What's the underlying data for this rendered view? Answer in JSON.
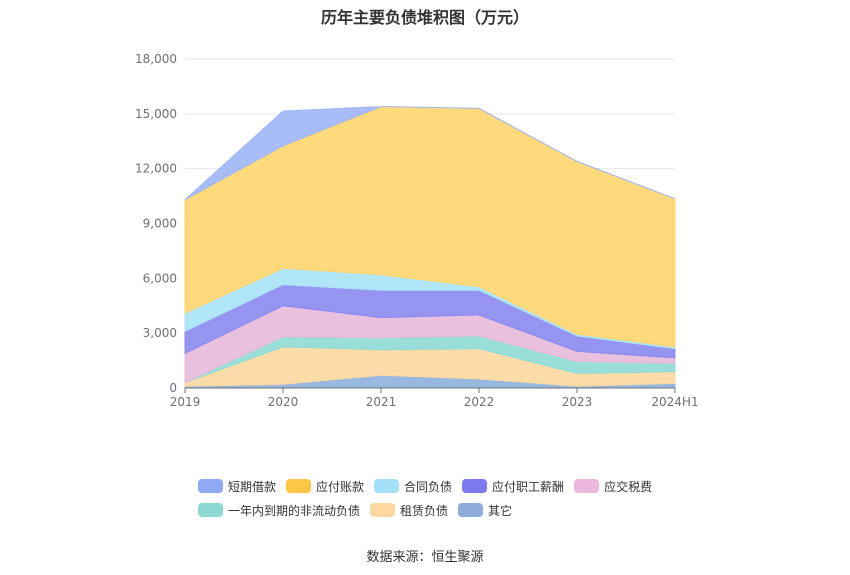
{
  "chart_data": {
    "type": "area",
    "stacked": true,
    "title": "历年主要负债堆积图（万元）",
    "categories": [
      "2019",
      "2020",
      "2021",
      "2022",
      "2023",
      "2024H1"
    ],
    "ylim": [
      0,
      18000
    ],
    "yticks": [
      0,
      3000,
      6000,
      9000,
      12000,
      15000,
      18000
    ],
    "ytick_labels": [
      "0",
      "3,000",
      "6,000",
      "9,000",
      "12,000",
      "15,000",
      "18,000"
    ],
    "grid": true,
    "legend_position": "bottom",
    "series": [
      {
        "name": "其它",
        "color": "#8eb0dc",
        "values": [
          100,
          200,
          700,
          500,
          100,
          250
        ]
      },
      {
        "name": "租赁负债",
        "color": "#fcd9a0",
        "values": [
          200,
          2050,
          1400,
          1650,
          700,
          650
        ]
      },
      {
        "name": "一年内到期的非流动负债",
        "color": "#8fdad6",
        "values": [
          0,
          550,
          650,
          700,
          650,
          450
        ]
      },
      {
        "name": "应交税费",
        "color": "#e8b9dc",
        "values": [
          1600,
          1700,
          1100,
          1150,
          550,
          300
        ]
      },
      {
        "name": "应付职工薪酬",
        "color": "#8989ef",
        "values": [
          1200,
          1150,
          1500,
          1350,
          850,
          500
        ]
      },
      {
        "name": "合同负债",
        "color": "#a9e2f7",
        "values": [
          1000,
          900,
          850,
          200,
          100,
          100
        ]
      },
      {
        "name": "应付账款",
        "color": "#ffd66e",
        "values": [
          6200,
          6700,
          9200,
          9750,
          9450,
          8100
        ]
      },
      {
        "name": "短期借款",
        "color": "#9fb6f7",
        "values": [
          0,
          1900,
          0,
          0,
          0,
          0
        ]
      }
    ]
  },
  "legend": {
    "row1": [
      {
        "label": "短期借款",
        "color": "#8fa9f5"
      },
      {
        "label": "应付账款",
        "color": "#fdc644"
      },
      {
        "label": "合同负债",
        "color": "#a4e0f8"
      },
      {
        "label": "应付职工薪酬",
        "color": "#7b7bee"
      },
      {
        "label": "应交税费",
        "color": "#e9b8dc"
      }
    ],
    "row2": [
      {
        "label": "一年内到期的非流动负债",
        "color": "#8ed9d6"
      },
      {
        "label": "租赁负债",
        "color": "#fcd8a0"
      },
      {
        "label": "其它",
        "color": "#8eacdb"
      }
    ]
  },
  "source_note": "数据来源：恒生聚源"
}
